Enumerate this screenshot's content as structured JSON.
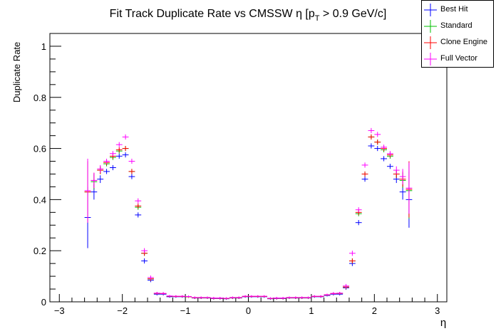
{
  "chart_data": {
    "type": "scatter",
    "title": "Fit Track Duplicate Rate vs CMSSW η [p",
    "title_sub": "T",
    "title_tail": " > 0.9 GeV/c]",
    "xlabel": "η",
    "ylabel": "Duplicate Rate",
    "xlim": [
      -3.15,
      3.15
    ],
    "ylim": [
      0,
      1.05
    ],
    "x_ticks": [
      -3,
      -2,
      -1,
      0,
      1,
      2,
      3
    ],
    "x_tick_labels": [
      "−3",
      "−2",
      "−1",
      "0",
      "1",
      "2",
      "3"
    ],
    "y_ticks": [
      0,
      0.2,
      0.4,
      0.6,
      0.8,
      1
    ],
    "y_tick_labels": [
      "0",
      "0.2",
      "0.4",
      "0.6",
      "0.8",
      "1"
    ],
    "bin_halfwidth": 0.05,
    "legend_position": "top-right",
    "x": [
      -2.55,
      -2.45,
      -2.35,
      -2.25,
      -2.15,
      -2.05,
      -1.95,
      -1.85,
      -1.75,
      -1.65,
      -1.55,
      -1.45,
      -1.35,
      -1.25,
      -1.15,
      -1.05,
      -0.95,
      -0.85,
      -0.75,
      -0.65,
      -0.55,
      -0.45,
      -0.35,
      -0.25,
      -0.15,
      -0.05,
      0.05,
      0.15,
      0.25,
      0.35,
      0.45,
      0.55,
      0.65,
      0.75,
      0.85,
      0.95,
      1.05,
      1.15,
      1.25,
      1.35,
      1.45,
      1.55,
      1.65,
      1.75,
      1.85,
      1.95,
      2.05,
      2.15,
      2.25,
      2.35,
      2.45,
      2.55
    ],
    "series": [
      {
        "name": "Best Hit",
        "color": "#0000ff",
        "values": [
          0.33,
          0.43,
          0.48,
          0.51,
          0.525,
          0.57,
          0.575,
          0.49,
          0.34,
          0.16,
          0.085,
          0.03,
          0.03,
          0.02,
          0.02,
          0.02,
          0.02,
          0.015,
          0.015,
          0.015,
          0.013,
          0.013,
          0.012,
          0.015,
          0.015,
          0.02,
          0.02,
          0.02,
          0.02,
          0.012,
          0.013,
          0.013,
          0.015,
          0.015,
          0.015,
          0.015,
          0.02,
          0.02,
          0.025,
          0.03,
          0.03,
          0.055,
          0.15,
          0.31,
          0.48,
          0.61,
          0.6,
          0.56,
          0.53,
          0.48,
          0.43,
          0.4
        ],
        "errors": [
          0.12,
          0.03,
          0.015,
          0.01,
          0.01,
          0.01,
          0.01,
          0.01,
          0.01,
          0.01,
          0.008,
          0.005,
          0.005,
          0.004,
          0.004,
          0.004,
          0.004,
          0.004,
          0.004,
          0.004,
          0.004,
          0.004,
          0.004,
          0.004,
          0.004,
          0.004,
          0.004,
          0.004,
          0.004,
          0.004,
          0.004,
          0.004,
          0.004,
          0.004,
          0.004,
          0.004,
          0.004,
          0.004,
          0.004,
          0.005,
          0.005,
          0.008,
          0.01,
          0.01,
          0.01,
          0.01,
          0.01,
          0.01,
          0.01,
          0.015,
          0.03,
          0.11
        ]
      },
      {
        "name": "Standard",
        "color": "#00c000",
        "values": [
          0.43,
          0.47,
          0.515,
          0.54,
          0.565,
          0.59,
          0.6,
          0.51,
          0.37,
          0.19,
          0.09,
          0.033,
          0.032,
          0.022,
          0.021,
          0.021,
          0.02,
          0.016,
          0.016,
          0.016,
          0.014,
          0.014,
          0.013,
          0.016,
          0.016,
          0.021,
          0.021,
          0.021,
          0.021,
          0.013,
          0.014,
          0.014,
          0.016,
          0.016,
          0.016,
          0.016,
          0.021,
          0.021,
          0.027,
          0.032,
          0.033,
          0.058,
          0.16,
          0.345,
          0.5,
          0.645,
          0.625,
          0.595,
          0.57,
          0.5,
          0.475,
          0.435
        ],
        "errors": [
          0.12,
          0.03,
          0.015,
          0.01,
          0.01,
          0.01,
          0.01,
          0.01,
          0.01,
          0.01,
          0.008,
          0.005,
          0.005,
          0.004,
          0.004,
          0.004,
          0.004,
          0.004,
          0.004,
          0.004,
          0.004,
          0.004,
          0.004,
          0.004,
          0.004,
          0.004,
          0.004,
          0.004,
          0.004,
          0.004,
          0.004,
          0.004,
          0.004,
          0.004,
          0.004,
          0.004,
          0.004,
          0.004,
          0.004,
          0.005,
          0.005,
          0.008,
          0.01,
          0.01,
          0.01,
          0.01,
          0.01,
          0.01,
          0.01,
          0.015,
          0.03,
          0.11
        ]
      },
      {
        "name": "Clone Engine",
        "color": "#ff0000",
        "values": [
          0.43,
          0.475,
          0.515,
          0.545,
          0.57,
          0.595,
          0.6,
          0.51,
          0.375,
          0.19,
          0.09,
          0.033,
          0.032,
          0.022,
          0.021,
          0.021,
          0.02,
          0.016,
          0.016,
          0.016,
          0.014,
          0.014,
          0.013,
          0.016,
          0.016,
          0.021,
          0.021,
          0.021,
          0.021,
          0.013,
          0.014,
          0.014,
          0.016,
          0.016,
          0.016,
          0.016,
          0.021,
          0.021,
          0.027,
          0.032,
          0.033,
          0.058,
          0.16,
          0.35,
          0.5,
          0.645,
          0.625,
          0.6,
          0.575,
          0.5,
          0.48,
          0.44
        ],
        "errors": [
          0.12,
          0.03,
          0.015,
          0.01,
          0.01,
          0.01,
          0.01,
          0.01,
          0.01,
          0.01,
          0.008,
          0.005,
          0.005,
          0.004,
          0.004,
          0.004,
          0.004,
          0.004,
          0.004,
          0.004,
          0.004,
          0.004,
          0.004,
          0.004,
          0.004,
          0.004,
          0.004,
          0.004,
          0.004,
          0.004,
          0.004,
          0.004,
          0.004,
          0.004,
          0.004,
          0.004,
          0.004,
          0.004,
          0.004,
          0.005,
          0.005,
          0.008,
          0.01,
          0.01,
          0.01,
          0.01,
          0.01,
          0.01,
          0.01,
          0.015,
          0.03,
          0.11
        ]
      },
      {
        "name": "Full Vector",
        "color": "#ff00ff",
        "values": [
          0.435,
          0.475,
          0.52,
          0.55,
          0.58,
          0.615,
          0.645,
          0.55,
          0.395,
          0.2,
          0.095,
          0.034,
          0.033,
          0.023,
          0.022,
          0.022,
          0.021,
          0.017,
          0.017,
          0.017,
          0.015,
          0.015,
          0.014,
          0.017,
          0.017,
          0.022,
          0.022,
          0.022,
          0.022,
          0.014,
          0.015,
          0.015,
          0.017,
          0.017,
          0.017,
          0.017,
          0.022,
          0.022,
          0.028,
          0.033,
          0.034,
          0.062,
          0.19,
          0.36,
          0.535,
          0.67,
          0.655,
          0.605,
          0.58,
          0.515,
          0.49,
          0.445
        ],
        "errors": [
          0.125,
          0.03,
          0.015,
          0.01,
          0.01,
          0.01,
          0.01,
          0.01,
          0.01,
          0.01,
          0.008,
          0.005,
          0.005,
          0.004,
          0.004,
          0.004,
          0.004,
          0.004,
          0.004,
          0.004,
          0.004,
          0.004,
          0.004,
          0.004,
          0.004,
          0.004,
          0.004,
          0.004,
          0.004,
          0.004,
          0.004,
          0.004,
          0.004,
          0.004,
          0.004,
          0.004,
          0.004,
          0.004,
          0.004,
          0.005,
          0.005,
          0.008,
          0.01,
          0.01,
          0.01,
          0.01,
          0.01,
          0.01,
          0.01,
          0.015,
          0.03,
          0.1
        ]
      }
    ]
  }
}
